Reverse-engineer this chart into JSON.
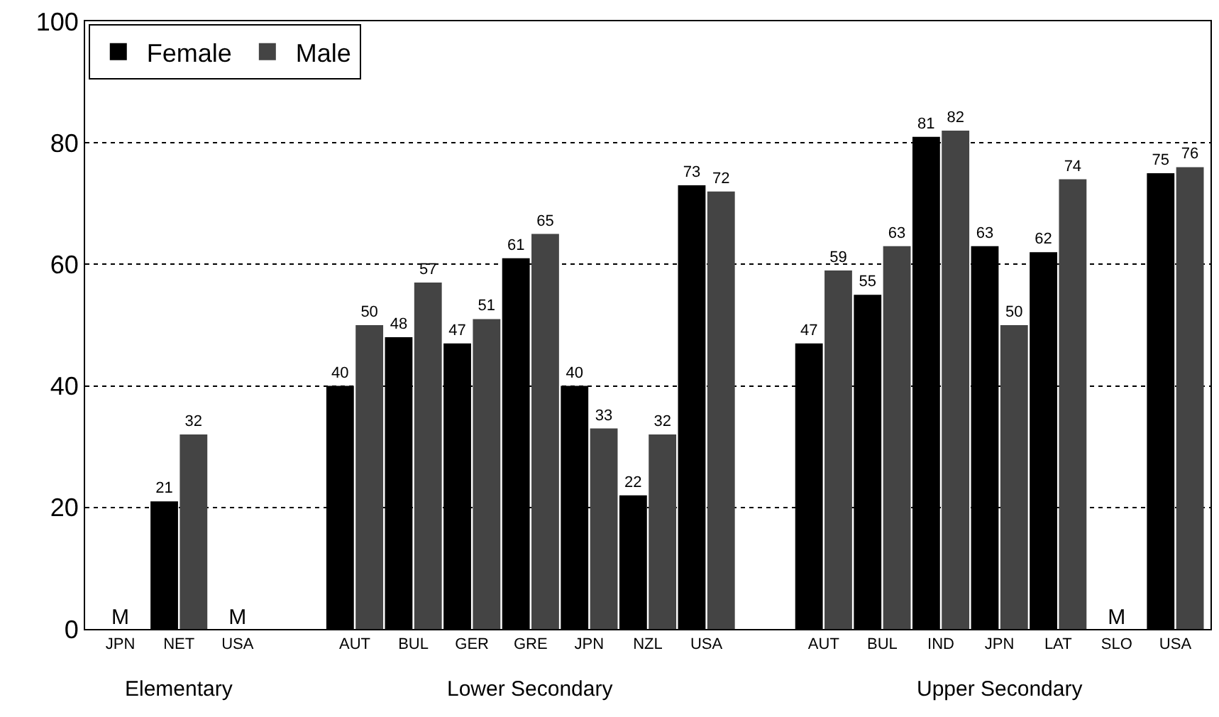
{
  "chart_data": {
    "type": "bar",
    "categories": [
      "JPN",
      "NET",
      "USA",
      null,
      "AUT",
      "BUL",
      "GER",
      "GRE",
      "JPN",
      "NZL",
      "USA",
      null,
      "AUT",
      "BUL",
      "IND",
      "JPN",
      "LAT",
      "SLO",
      "USA"
    ],
    "series": [
      {
        "name": "Female",
        "color": "#000000",
        "values": [
          null,
          21,
          null,
          null,
          40,
          48,
          47,
          61,
          40,
          22,
          73,
          null,
          47,
          55,
          81,
          63,
          62,
          null,
          75
        ],
        "value_labels": [
          "M",
          "21",
          "M",
          null,
          "40",
          "48",
          "47",
          "61",
          "40",
          "22",
          "73",
          null,
          "47",
          "55",
          "81",
          "63",
          "62",
          "M",
          "75"
        ]
      },
      {
        "name": "Male",
        "color": "#444444",
        "values": [
          null,
          32,
          null,
          null,
          50,
          57,
          51,
          65,
          33,
          32,
          72,
          null,
          59,
          63,
          82,
          50,
          74,
          null,
          76
        ],
        "value_labels": [
          null,
          "32",
          null,
          null,
          "50",
          "57",
          "51",
          "65",
          "33",
          "32",
          "72",
          null,
          "59",
          "63",
          "82",
          "50",
          "74",
          null,
          "76"
        ]
      }
    ],
    "annotations": [
      "Elementary",
      "Lower Secondary",
      "Upper Secondary"
    ],
    "ylim": [
      0,
      100
    ],
    "yticks": [
      0,
      20,
      40,
      60,
      80,
      100
    ],
    "grid": "y",
    "legend": "top left"
  }
}
